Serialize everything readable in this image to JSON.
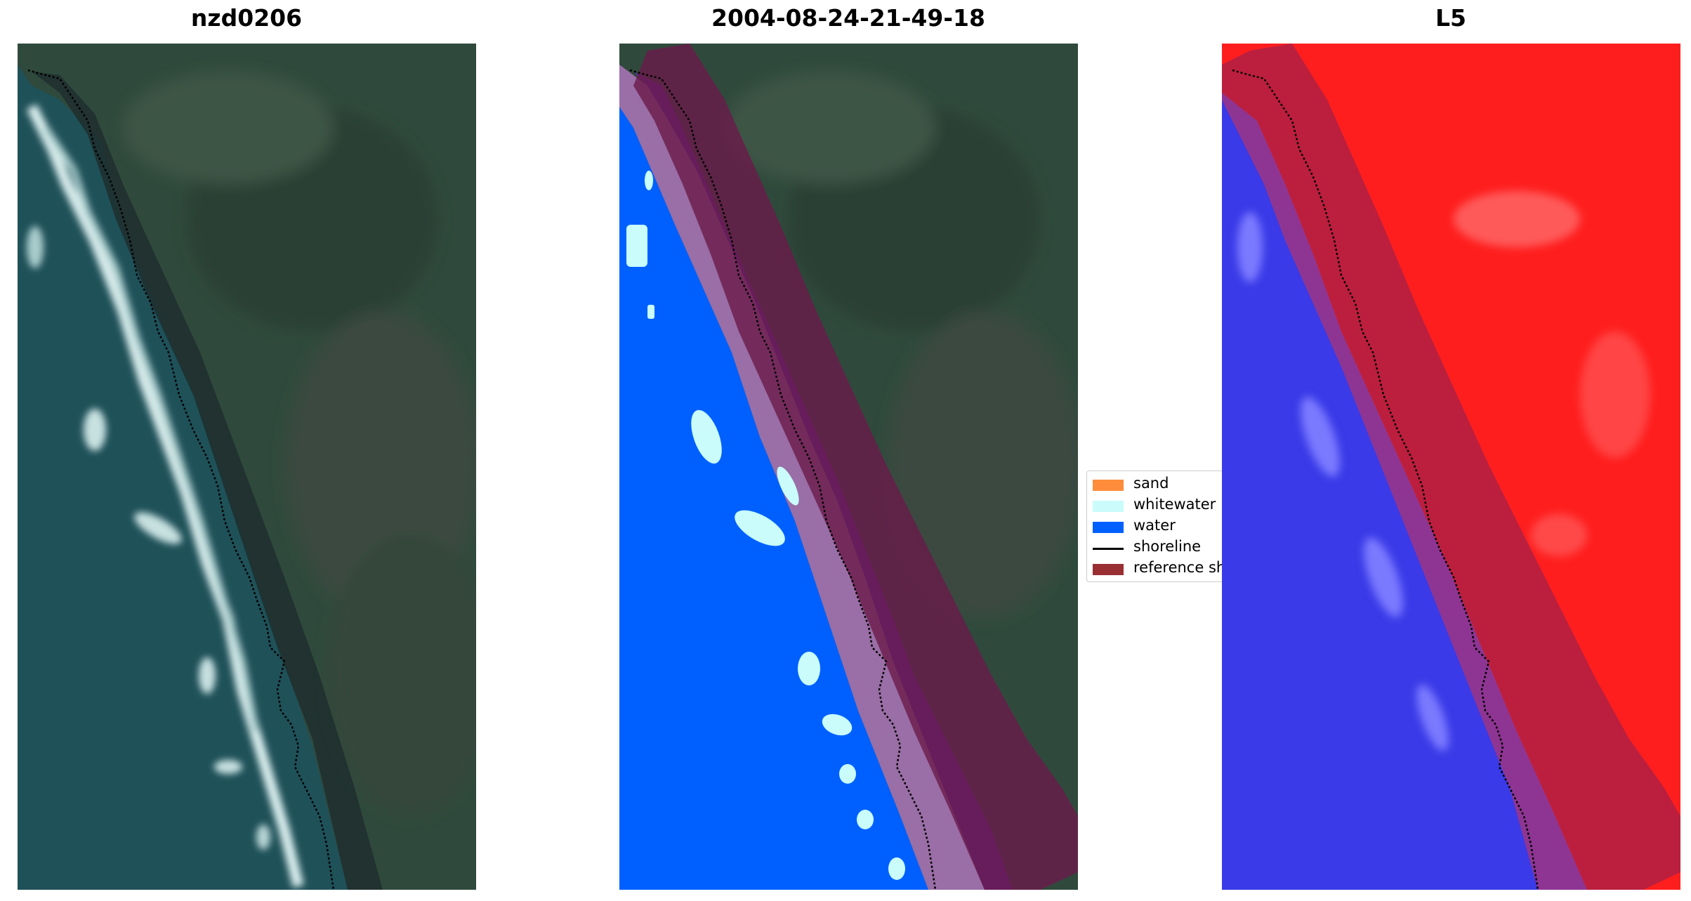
{
  "panels": [
    {
      "title": "nzd0206"
    },
    {
      "title": "2004-08-24-21-49-18"
    },
    {
      "title": "L5"
    }
  ],
  "legend": {
    "items": [
      {
        "label": "sand",
        "color": "#ff8c3a"
      },
      {
        "label": "whitewater",
        "color": "#c9fcfb"
      },
      {
        "label": "water",
        "color": "#0060ff"
      },
      {
        "label": "shoreline",
        "color": "#000000"
      },
      {
        "label": "reference shoreline",
        "color": "#9a2f33"
      }
    ]
  },
  "colors": {
    "land": "#2d4438",
    "ocean": "#1f5159",
    "water_class": "#0060ff",
    "sand_class_overlay": "#9a6ea6",
    "buffer_overlay": "#6a1a4a",
    "index_positive": "#ff1e1e",
    "index_negative": "#3a3ae8"
  }
}
